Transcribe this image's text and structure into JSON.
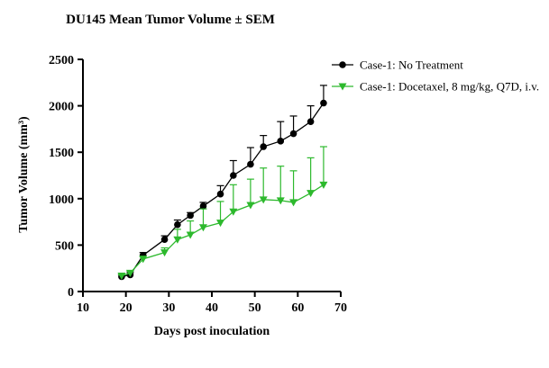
{
  "chart_data": {
    "type": "line",
    "title": "DU145 Mean Tumor Volume ± SEM",
    "xlabel": "Days post inoculation",
    "ylabel": "Tumor Volume (mm³)",
    "xlim": [
      10,
      70
    ],
    "ylim": [
      0,
      2500
    ],
    "x_ticks": [
      10,
      20,
      30,
      40,
      50,
      60,
      70
    ],
    "y_ticks": [
      0,
      500,
      1000,
      1500,
      2000,
      2500
    ],
    "grid": false,
    "legend_position": "top-right",
    "error_bars": "SEM (upper)",
    "series": [
      {
        "name": "Case-1: No Treatment",
        "color": "#000000",
        "marker": "circle",
        "x": [
          19,
          21,
          24,
          29,
          32,
          35,
          38,
          42,
          45,
          49,
          52,
          56,
          59,
          63,
          66
        ],
        "y": [
          160,
          180,
          390,
          560,
          720,
          820,
          920,
          1050,
          1250,
          1370,
          1560,
          1620,
          1700,
          1830,
          2030
        ],
        "err": [
          20,
          25,
          30,
          40,
          50,
          30,
          40,
          90,
          160,
          180,
          120,
          210,
          190,
          170,
          190
        ]
      },
      {
        "name": "Case-1: Docetaxel, 8 mg/kg, Q7D, i.v.",
        "color": "#2db92d",
        "marker": "triangle-down",
        "x": [
          19,
          21,
          24,
          29,
          32,
          35,
          38,
          42,
          45,
          49,
          52,
          56,
          59,
          63,
          66
        ],
        "y": [
          170,
          200,
          350,
          420,
          560,
          610,
          690,
          740,
          860,
          930,
          990,
          980,
          960,
          1060,
          1150
        ],
        "err": [
          10,
          20,
          30,
          50,
          110,
          150,
          200,
          230,
          290,
          280,
          340,
          370,
          340,
          380,
          410
        ]
      }
    ]
  }
}
